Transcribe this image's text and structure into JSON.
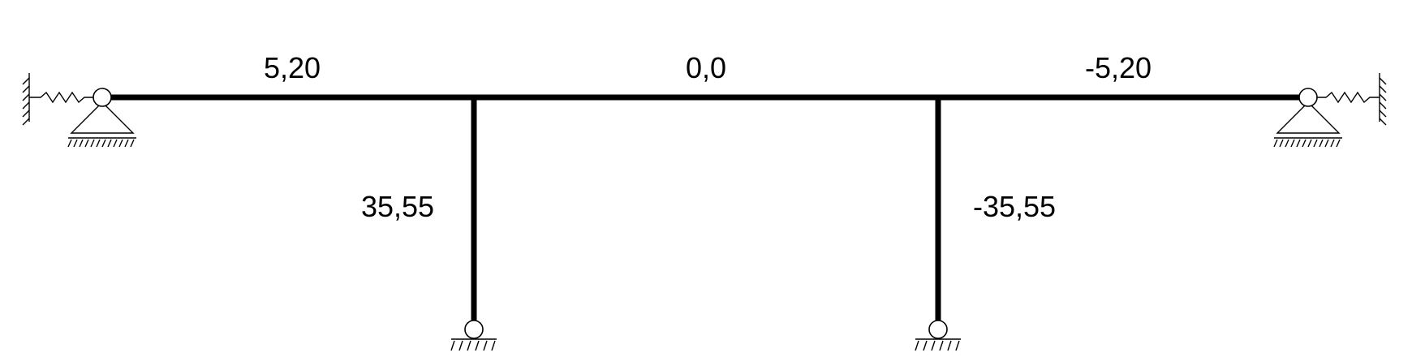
{
  "labels": {
    "beam_left": "5,20",
    "beam_middle": "0,0",
    "beam_right": "-5,20",
    "column_left": "35,55",
    "column_right": "-35,55"
  },
  "colors": {
    "line": "#000000",
    "background": "#ffffff"
  }
}
